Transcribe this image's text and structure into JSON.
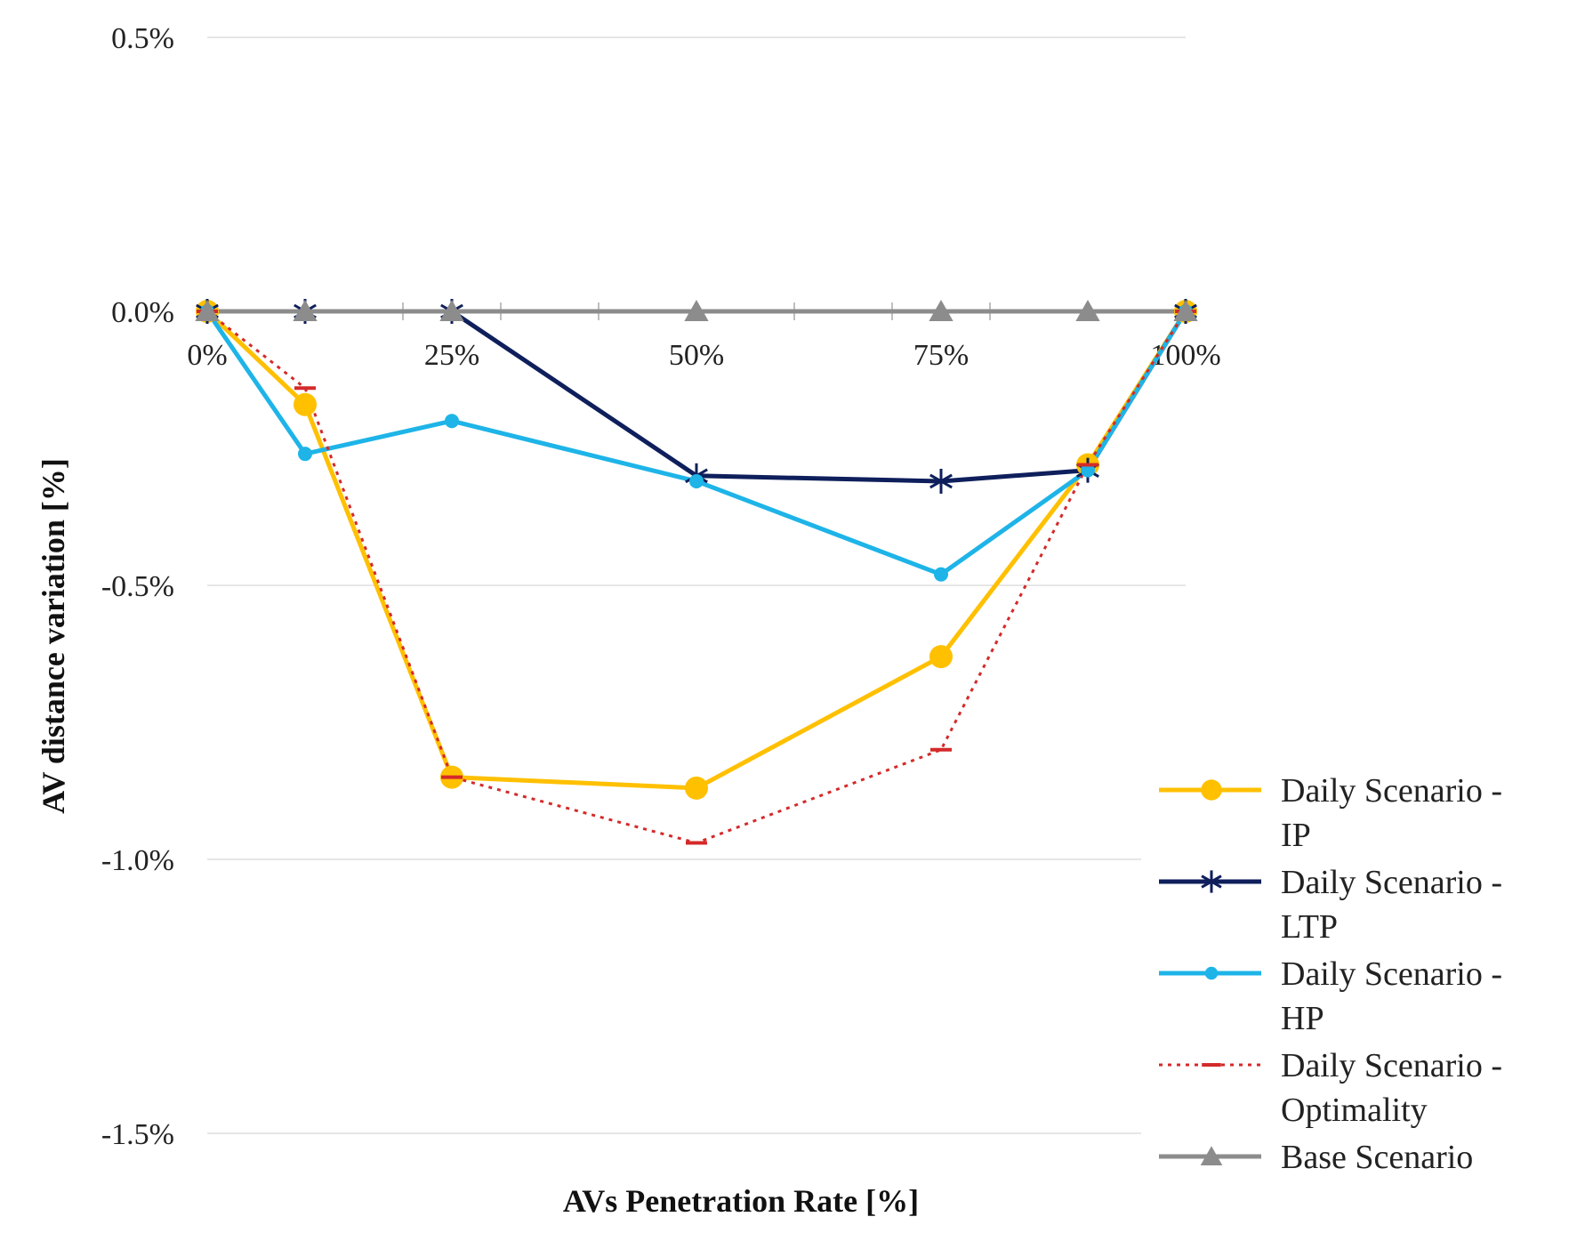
{
  "chart_data": {
    "type": "line",
    "title": "",
    "xlabel": "AVs Penetration Rate [%]",
    "ylabel": "AV distance variation [%]",
    "x": [
      0,
      10,
      25,
      50,
      75,
      90,
      100
    ],
    "x_tick_values": [
      0,
      25,
      50,
      75,
      100
    ],
    "x_tick_labels": [
      "0%",
      "25%",
      "50%",
      "75%",
      "100%"
    ],
    "ylim": [
      -1.5,
      0.5
    ],
    "y_ticks": [
      0.5,
      0.0,
      -0.5,
      -1.0,
      -1.5
    ],
    "y_tick_labels": [
      "0.5%",
      "0.0%",
      "-0.5%",
      "-1.0%",
      "-1.5%"
    ],
    "grid": "horizontal",
    "legend_position": "right",
    "series": [
      {
        "name": "Daily Scenario - IP",
        "label_lines": [
          "Daily Scenario -",
          "IP"
        ],
        "color": "#FFC000",
        "marker": "circle",
        "dash": "solid",
        "values": [
          0,
          -0.17,
          -0.85,
          -0.87,
          -0.63,
          -0.28,
          0
        ]
      },
      {
        "name": "Daily Scenario - LTP",
        "label_lines": [
          "Daily Scenario -",
          "LTP"
        ],
        "color": "#0F1F5C",
        "marker": "asterisk",
        "dash": "solid",
        "values": [
          0,
          0,
          0,
          -0.3,
          -0.31,
          -0.29,
          0
        ]
      },
      {
        "name": "Daily Scenario - HP",
        "label_lines": [
          "Daily Scenario -",
          "HP"
        ],
        "color": "#1EB4E8",
        "marker": "dot",
        "dash": "solid",
        "values": [
          0,
          -0.26,
          -0.2,
          -0.31,
          -0.48,
          -0.29,
          0
        ]
      },
      {
        "name": "Daily Scenario - Optimality",
        "label_lines": [
          "Daily Scenario -",
          "Optimality"
        ],
        "color": "#D42A2A",
        "marker": "dash",
        "dash": "dotted",
        "values": [
          0,
          -0.14,
          -0.85,
          -0.97,
          -0.8,
          -0.28,
          0
        ]
      },
      {
        "name": "Base Scenario",
        "label_lines": [
          "Base Scenario"
        ],
        "color": "#8C8C8C",
        "marker": "triangle",
        "dash": "solid",
        "values": [
          0,
          0,
          0,
          0,
          0,
          0,
          0
        ]
      }
    ]
  }
}
